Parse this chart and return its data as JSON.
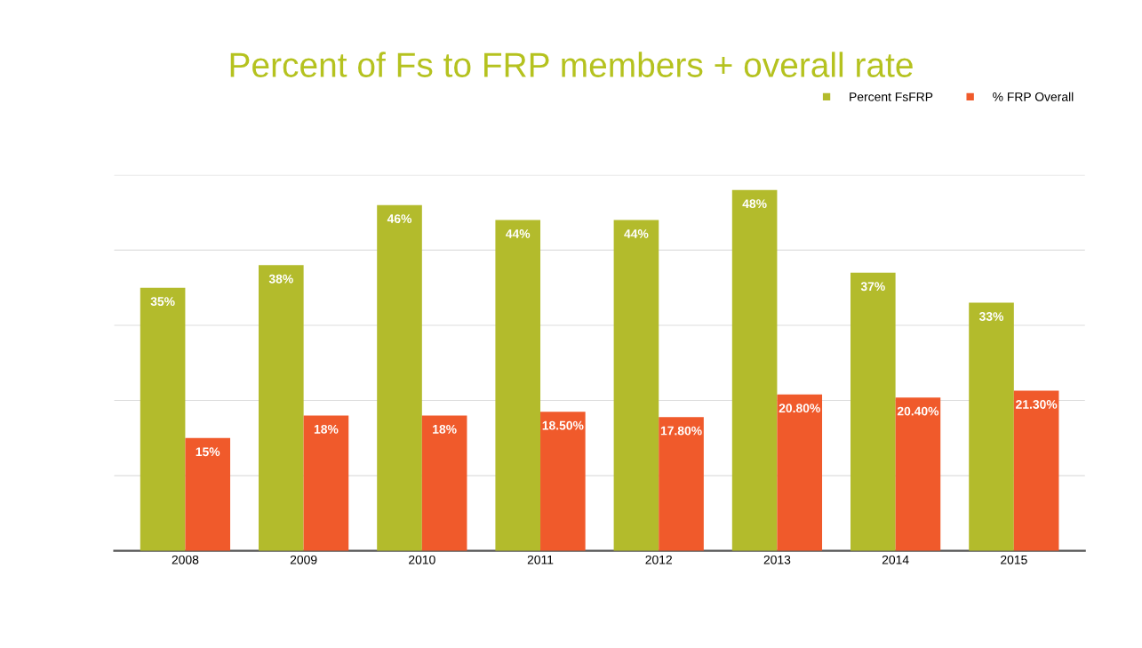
{
  "chart_data": {
    "type": "bar",
    "title": "Percent of Fs to FRP members + overall rate",
    "categories": [
      "2008",
      "2009",
      "2010",
      "2011",
      "2012",
      "2013",
      "2014",
      "2015"
    ],
    "series": [
      {
        "name": "Percent FsFRP",
        "color": "#b3bb2c",
        "values": [
          35,
          38,
          46,
          44,
          44,
          48,
          37,
          33
        ],
        "value_labels": [
          "35%",
          "38%",
          "46%",
          "44%",
          "44%",
          "48%",
          "37%",
          "33%"
        ]
      },
      {
        "name": "% FRP Overall",
        "color": "#f05a2b",
        "values": [
          15,
          18,
          18,
          18.5,
          17.8,
          20.8,
          20.4,
          21.3
        ],
        "value_labels": [
          "15%",
          "18%",
          "18%",
          "18.50%",
          "17.80%",
          "20.80%",
          "20.40%",
          "21.30%"
        ]
      }
    ],
    "ylim": [
      0,
      50
    ],
    "yticks": [
      {
        "value": 0,
        "label": null
      },
      {
        "value": 10,
        "label": null
      },
      {
        "value": 20,
        "label": null
      },
      {
        "value": 30,
        "label": null
      },
      {
        "value": 40,
        "label": null
      },
      {
        "value": 50,
        "label": null
      }
    ],
    "grid": "y",
    "legend": "top right",
    "tick_labels": "x"
  }
}
